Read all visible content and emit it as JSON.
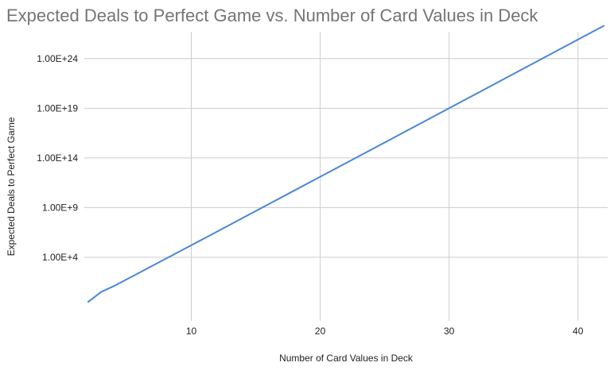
{
  "chart_data": {
    "type": "line",
    "title": "Expected Deals to Perfect Game vs. Number of Card Values in Deck",
    "xlabel": "Number of Card Values in Deck",
    "ylabel": "Expected Deals to Perfect Game",
    "x_scale": "linear",
    "y_scale": "log",
    "xlim": [
      1.7,
      42.3
    ],
    "ylim_log10": [
      -2.4,
      26.7
    ],
    "x_ticks": [
      10,
      20,
      30,
      40
    ],
    "x_tick_labels": [
      "10",
      "20",
      "30",
      "40"
    ],
    "y_ticks_log10": [
      4,
      9,
      14,
      19,
      24
    ],
    "y_tick_labels": [
      "1.00E+4",
      "1.00E+9",
      "1.00E+14",
      "1.00E+19",
      "1.00E+24"
    ],
    "grid": true,
    "legend": "none",
    "series": [
      {
        "color": "#4a86d8",
        "x": [
          2,
          3,
          4,
          10,
          20,
          30,
          42
        ],
        "y_log10": [
          -0.5,
          0.5,
          1.1,
          5.2,
          12.1,
          19.0,
          27.3
        ]
      }
    ]
  }
}
